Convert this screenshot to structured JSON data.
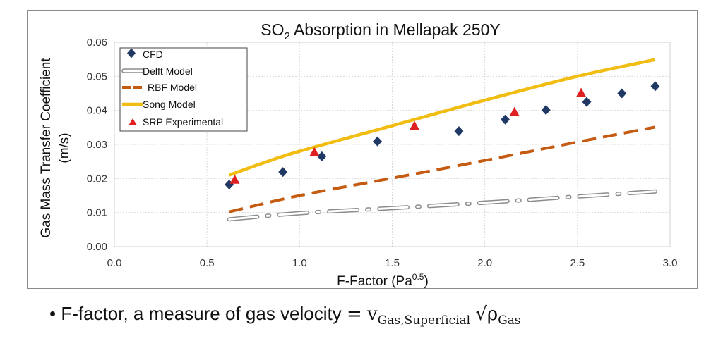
{
  "chart_data": {
    "type": "scatter",
    "title_main": "SO",
    "title_sub": "2",
    "title_rest": " Absorption in Mellapak 250Y",
    "xlabel_main": "F-Factor (Pa",
    "xlabel_sup": "0.5",
    "xlabel_end": ")",
    "ylabel_line1": "Gas Mass Transfer Coefficient",
    "ylabel_line2": "(m/s)",
    "xlim": [
      0,
      3.0
    ],
    "ylim": [
      0,
      0.06
    ],
    "x_ticks": [
      "0.0",
      "0.5",
      "1.0",
      "1.5",
      "2.0",
      "2.5",
      "3.0"
    ],
    "y_ticks": [
      "0.00",
      "0.01",
      "0.02",
      "0.03",
      "0.04",
      "0.05",
      "0.06"
    ],
    "grid": true,
    "legend_position": "top-left",
    "series": [
      {
        "name": "CFD",
        "kind": "marker-diamond",
        "color": "#1f3864",
        "points": [
          [
            0.62,
            0.0182
          ],
          [
            0.91,
            0.0219
          ],
          [
            1.12,
            0.0265
          ],
          [
            1.42,
            0.0309
          ],
          [
            1.86,
            0.0339
          ],
          [
            2.11,
            0.0373
          ],
          [
            2.33,
            0.0401
          ],
          [
            2.55,
            0.0425
          ],
          [
            2.74,
            0.045
          ],
          [
            2.92,
            0.0471
          ]
        ]
      },
      {
        "name": "Delft Model",
        "kind": "line-hollow-dashdot",
        "color": "#8c8c8c",
        "points": [
          [
            0.62,
            0.008
          ],
          [
            1.0,
            0.0098
          ],
          [
            1.5,
            0.0113
          ],
          [
            2.0,
            0.0129
          ],
          [
            2.5,
            0.0147
          ],
          [
            2.92,
            0.0162
          ]
        ]
      },
      {
        "name": "RBF Model",
        "kind": "line-dashed",
        "color": "#c55a11",
        "points": [
          [
            0.62,
            0.0102
          ],
          [
            1.0,
            0.015
          ],
          [
            1.5,
            0.0201
          ],
          [
            2.0,
            0.0253
          ],
          [
            2.5,
            0.0307
          ],
          [
            2.92,
            0.0351
          ]
        ]
      },
      {
        "name": "Song Model",
        "kind": "line-solid",
        "color": "#f2bd12",
        "points": [
          [
            0.62,
            0.021
          ],
          [
            0.8,
            0.0245
          ],
          [
            1.0,
            0.028
          ],
          [
            1.5,
            0.0355
          ],
          [
            2.0,
            0.043
          ],
          [
            2.5,
            0.05
          ],
          [
            2.92,
            0.0549
          ]
        ]
      },
      {
        "name": "SRP Experimental",
        "kind": "marker-triangle",
        "color": "#e02020",
        "points": [
          [
            0.65,
            0.0197
          ],
          [
            1.08,
            0.0278
          ],
          [
            1.62,
            0.0355
          ],
          [
            2.16,
            0.0396
          ],
          [
            2.52,
            0.0452
          ]
        ]
      }
    ]
  },
  "footnote": {
    "bullet": "•",
    "text": "F-factor, a measure of gas velocity",
    "equals": "=",
    "var": "v",
    "var_sub": "Gas,Superficial",
    "root_var": "ρ",
    "root_sub": "Gas"
  }
}
